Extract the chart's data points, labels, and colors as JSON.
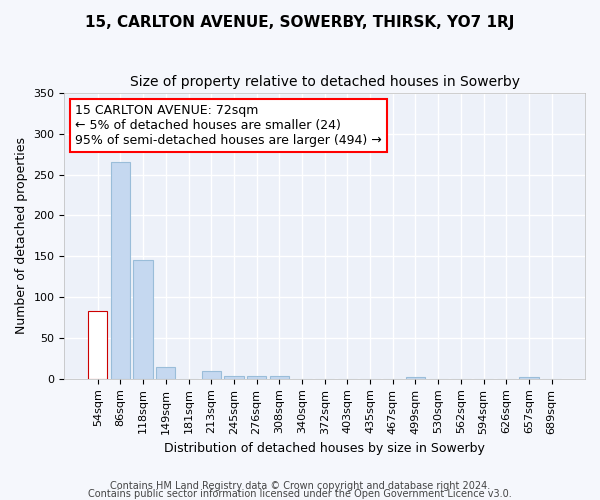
{
  "title": "15, CARLTON AVENUE, SOWERBY, THIRSK, YO7 1RJ",
  "subtitle": "Size of property relative to detached houses in Sowerby",
  "xlabel": "Distribution of detached houses by size in Sowerby",
  "ylabel": "Number of detached properties",
  "categories": [
    "54sqm",
    "86sqm",
    "118sqm",
    "149sqm",
    "181sqm",
    "213sqm",
    "245sqm",
    "276sqm",
    "308sqm",
    "340sqm",
    "372sqm",
    "403sqm",
    "435sqm",
    "467sqm",
    "499sqm",
    "530sqm",
    "562sqm",
    "594sqm",
    "626sqm",
    "657sqm",
    "689sqm"
  ],
  "values": [
    83,
    265,
    145,
    15,
    0,
    10,
    3,
    3,
    3,
    0,
    0,
    0,
    0,
    0,
    2,
    0,
    0,
    0,
    0,
    2,
    0
  ],
  "bar_colors": [
    "#ffffff",
    "#c5d8f0",
    "#c5d8f0",
    "#c5d8f0",
    "#c5d8f0",
    "#c5d8f0",
    "#c5d8f0",
    "#c5d8f0",
    "#c5d8f0",
    "#c5d8f0",
    "#c5d8f0",
    "#c5d8f0",
    "#c5d8f0",
    "#c5d8f0",
    "#c5d8f0",
    "#c5d8f0",
    "#c5d8f0",
    "#c5d8f0",
    "#c5d8f0",
    "#c5d8f0",
    "#c5d8f0"
  ],
  "bar_edge_colors": [
    "#cc0000",
    "#9abdd9",
    "#9abdd9",
    "#9abdd9",
    "#9abdd9",
    "#9abdd9",
    "#9abdd9",
    "#9abdd9",
    "#9abdd9",
    "#9abdd9",
    "#9abdd9",
    "#9abdd9",
    "#9abdd9",
    "#9abdd9",
    "#9abdd9",
    "#9abdd9",
    "#9abdd9",
    "#9abdd9",
    "#9abdd9",
    "#9abdd9",
    "#9abdd9"
  ],
  "ylim": [
    0,
    350
  ],
  "yticks": [
    0,
    50,
    100,
    150,
    200,
    250,
    300,
    350
  ],
  "annotation_text": "15 CARLTON AVENUE: 72sqm\n← 5% of detached houses are smaller (24)\n95% of semi-detached houses are larger (494) →",
  "footnote_line1": "Contains HM Land Registry data © Crown copyright and database right 2024.",
  "footnote_line2": "Contains public sector information licensed under the Open Government Licence v3.0.",
  "bg_color": "#f5f7fc",
  "plot_bg_color": "#edf1f9",
  "grid_color": "#ffffff",
  "title_fontsize": 11,
  "subtitle_fontsize": 10,
  "label_fontsize": 9,
  "tick_fontsize": 8,
  "annotation_fontsize": 9,
  "footnote_fontsize": 7
}
